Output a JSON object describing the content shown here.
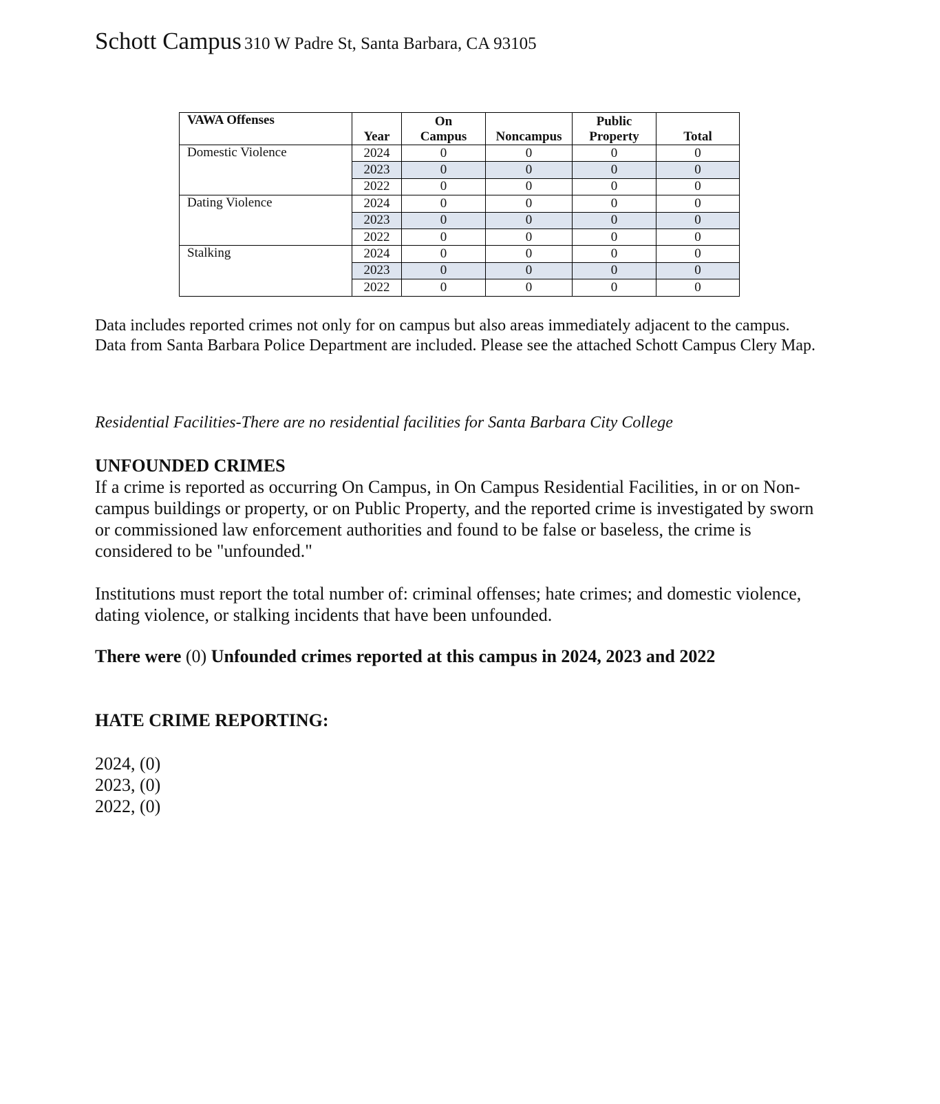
{
  "title": {
    "name": "Schott Campus",
    "address": "310 W Padre St, Santa Barbara, CA 93105"
  },
  "table": {
    "headers": [
      "VAWA Offenses",
      "Year",
      "On Campus",
      "Noncampus",
      "Public Property",
      "Total"
    ],
    "groups": [
      {
        "offense": "Domestic Violence",
        "rows": [
          [
            "2024",
            "0",
            "0",
            "0",
            "0"
          ],
          [
            "2023",
            "0",
            "0",
            "0",
            "0"
          ],
          [
            "2022",
            "0",
            "0",
            "0",
            "0"
          ]
        ]
      },
      {
        "offense": "Dating Violence",
        "rows": [
          [
            "2024",
            "0",
            "0",
            "0",
            "0"
          ],
          [
            "2023",
            "0",
            "0",
            "0",
            "0"
          ],
          [
            "2022",
            "0",
            "0",
            "0",
            "0"
          ]
        ]
      },
      {
        "offense": "Stalking",
        "rows": [
          [
            "2024",
            "0",
            "0",
            "0",
            "0"
          ],
          [
            "2023",
            "0",
            "0",
            "0",
            "0"
          ],
          [
            "2022",
            "0",
            "0",
            "0",
            "0"
          ]
        ]
      }
    ],
    "shade_color": "#dde4ef"
  },
  "note": "Data includes reported crimes not only for on campus but also areas immediately adjacent to the campus. Data from Santa Barbara Police Department are included.  Please see the attached Schott Campus Clery Map.",
  "residential": "Residential Facilities-There are no residential facilities for Santa Barbara City College",
  "unfounded": {
    "heading": "UNFOUNDED CRIMES",
    "body": "If a crime is reported as occurring On Campus, in On Campus Residential Facilities, in or on Non-campus buildings or property, or on Public Property, and the reported crime is investigated by sworn or commissioned law enforcement authorities and found to be false or baseless, the crime is considered to be \"unfounded.\"",
    "institutions": "Institutions must report the total number of: criminal offenses; hate crimes; and domestic violence, dating violence, or stalking incidents that have been unfounded.",
    "statement_a": "There were ",
    "statement_b": "(0)",
    "statement_c": " Unfounded crimes reported at this campus in 2024, 2023 and 2022"
  },
  "hate": {
    "heading": "HATE CRIME REPORTING:",
    "lines": [
      "2024, (0)",
      "2023, (0)",
      "2022, (0)"
    ]
  }
}
